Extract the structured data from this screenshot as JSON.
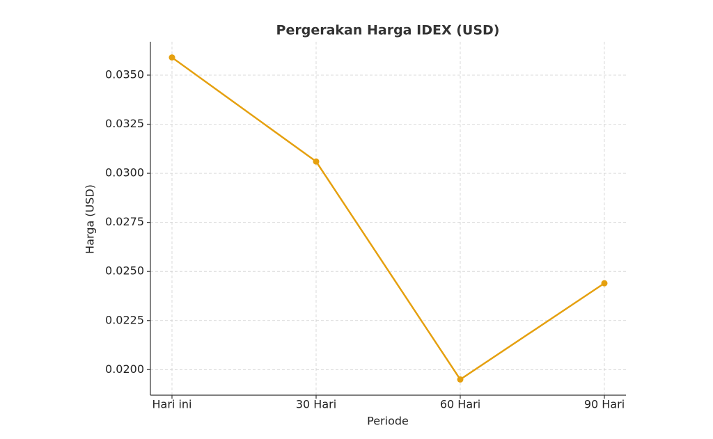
{
  "chart_data": {
    "type": "line",
    "title": "Pergerakan Harga IDEX (USD)",
    "x_label": "Periode",
    "y_label": "Harga (USD)",
    "categories": [
      "Hari ini",
      "30 Hari",
      "60 Hari",
      "90 Hari"
    ],
    "series": [
      {
        "name": "IDEX",
        "color": "#e5a00f",
        "values": [
          0.0359,
          0.0306,
          0.0195,
          0.0244
        ]
      }
    ],
    "ylim": [
      0.0187,
      0.0367
    ],
    "yticks": [
      {
        "value": 0.02,
        "label": "0.0200"
      },
      {
        "value": 0.0225,
        "label": "0.0225"
      },
      {
        "value": 0.025,
        "label": "0.0250"
      },
      {
        "value": 0.0275,
        "label": "0.0275"
      },
      {
        "value": 0.03,
        "label": "0.0300"
      },
      {
        "value": 0.0325,
        "label": "0.0325"
      },
      {
        "value": 0.035,
        "label": "0.0350"
      }
    ],
    "grid": true
  }
}
